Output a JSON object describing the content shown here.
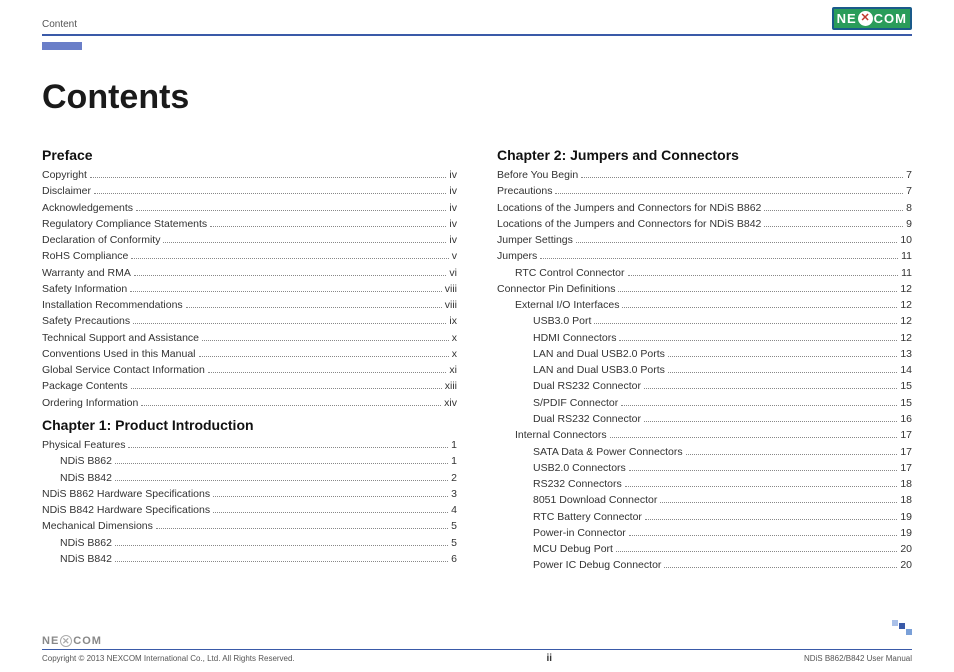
{
  "header": {
    "section_label": "Content",
    "brand": "NEXCOM"
  },
  "title": "Contents",
  "sections": [
    {
      "heading": "Preface",
      "column": 0,
      "entries": [
        {
          "label": "Copyright",
          "page": "iv",
          "indent": 0
        },
        {
          "label": "Disclaimer",
          "page": "iv",
          "indent": 0
        },
        {
          "label": "Acknowledgements",
          "page": "iv",
          "indent": 0
        },
        {
          "label": "Regulatory Compliance Statements",
          "page": "iv",
          "indent": 0
        },
        {
          "label": "Declaration of Conformity",
          "page": "iv",
          "indent": 0
        },
        {
          "label": "RoHS Compliance",
          "page": "v",
          "indent": 0
        },
        {
          "label": "Warranty and RMA",
          "page": "vi",
          "indent": 0
        },
        {
          "label": "Safety Information",
          "page": "viii",
          "indent": 0
        },
        {
          "label": "Installation Recommendations",
          "page": "viii",
          "indent": 0
        },
        {
          "label": "Safety Precautions",
          "page": "ix",
          "indent": 0
        },
        {
          "label": "Technical Support and Assistance",
          "page": "x",
          "indent": 0
        },
        {
          "label": "Conventions Used in this Manual",
          "page": "x",
          "indent": 0
        },
        {
          "label": "Global Service Contact Information",
          "page": "xi",
          "indent": 0
        },
        {
          "label": "Package Contents",
          "page": "xiii",
          "indent": 0
        },
        {
          "label": "Ordering Information",
          "page": "xiv",
          "indent": 0
        }
      ]
    },
    {
      "heading": "Chapter 1: Product Introduction",
      "column": 0,
      "entries": [
        {
          "label": "Physical Features",
          "page": "1",
          "indent": 0
        },
        {
          "label": "NDiS B862",
          "page": "1",
          "indent": 1
        },
        {
          "label": "NDiS B842",
          "page": "2",
          "indent": 1
        },
        {
          "label": "NDiS B862 Hardware Specifications",
          "page": "3",
          "indent": 0
        },
        {
          "label": "NDiS B842 Hardware Specifications",
          "page": "4",
          "indent": 0
        },
        {
          "label": "Mechanical Dimensions",
          "page": "5",
          "indent": 0
        },
        {
          "label": "NDiS B862",
          "page": "5",
          "indent": 1
        },
        {
          "label": "NDiS B842",
          "page": "6",
          "indent": 1
        }
      ]
    },
    {
      "heading": "Chapter 2: Jumpers and Connectors",
      "column": 1,
      "entries": [
        {
          "label": "Before You Begin",
          "page": "7",
          "indent": 0
        },
        {
          "label": "Precautions",
          "page": "7",
          "indent": 0
        },
        {
          "label": "Locations of the Jumpers and Connectors for NDiS B862",
          "page": "8",
          "indent": 0
        },
        {
          "label": "Locations of the Jumpers and Connectors for NDiS B842",
          "page": "9",
          "indent": 0
        },
        {
          "label": "Jumper Settings",
          "page": "10",
          "indent": 0
        },
        {
          "label": "Jumpers",
          "page": "11",
          "indent": 0
        },
        {
          "label": "RTC Control Connector",
          "page": "11",
          "indent": 1
        },
        {
          "label": "Connector Pin Definitions",
          "page": "12",
          "indent": 0
        },
        {
          "label": "External I/O Interfaces",
          "page": "12",
          "indent": 1
        },
        {
          "label": "USB3.0 Port",
          "page": "12",
          "indent": 2
        },
        {
          "label": "HDMI Connectors",
          "page": "12",
          "indent": 2
        },
        {
          "label": "LAN and Dual USB2.0 Ports",
          "page": "13",
          "indent": 2
        },
        {
          "label": "LAN and Dual USB3.0 Ports",
          "page": "14",
          "indent": 2
        },
        {
          "label": "Dual RS232 Connector",
          "page": "15",
          "indent": 2
        },
        {
          "label": "S/PDIF Connector",
          "page": "15",
          "indent": 2
        },
        {
          "label": "Dual RS232 Connector",
          "page": "16",
          "indent": 2
        },
        {
          "label": "Internal Connectors",
          "page": "17",
          "indent": 1
        },
        {
          "label": "SATA Data & Power Connectors",
          "page": "17",
          "indent": 2
        },
        {
          "label": "USB2.0 Connectors",
          "page": "17",
          "indent": 2
        },
        {
          "label": "RS232 Connectors",
          "page": "18",
          "indent": 2
        },
        {
          "label": "8051 Download Connector",
          "page": "18",
          "indent": 2
        },
        {
          "label": "RTC Battery Connector",
          "page": "19",
          "indent": 2
        },
        {
          "label": "Power-in Connector",
          "page": "19",
          "indent": 2
        },
        {
          "label": "MCU Debug Port",
          "page": "20",
          "indent": 2
        },
        {
          "label": "Power IC Debug Connector",
          "page": "20",
          "indent": 2
        }
      ]
    }
  ],
  "footer": {
    "copyright": "Copyright © 2013 NEXCOM International Co., Ltd. All Rights Reserved.",
    "page_number": "ii",
    "doc_ref": "NDiS B862/B842 User Manual"
  },
  "colors": {
    "rule": "#3a5aa8",
    "accent_bar": "#6a7ec8",
    "logo_bg": "#2a9c5a",
    "logo_border": "#1a5a8a"
  }
}
